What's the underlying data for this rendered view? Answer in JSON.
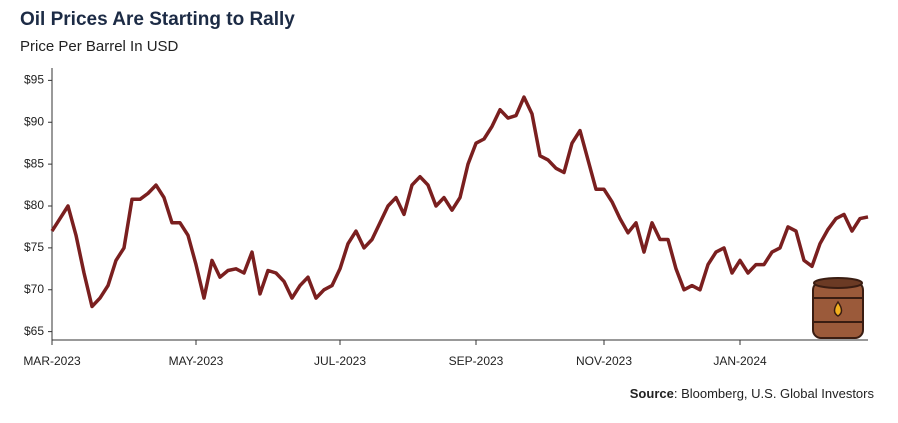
{
  "chart_data": {
    "type": "line",
    "title": "Oil Prices Are Starting to Rally",
    "subtitle": "Price Per Barrel In USD",
    "source": {
      "label": "Source",
      "text": ": Bloomberg, U.S. Global Investors"
    },
    "categories": [
      "MAR-2023",
      null,
      null,
      null,
      null,
      null,
      null,
      null,
      null,
      null,
      null,
      null,
      null,
      null,
      null,
      null,
      null,
      null,
      "MAY-2023",
      null,
      null,
      null,
      null,
      null,
      null,
      null,
      null,
      null,
      null,
      null,
      null,
      null,
      null,
      null,
      null,
      null,
      "JUL-2023",
      null,
      null,
      null,
      null,
      null,
      null,
      null,
      null,
      null,
      null,
      null,
      null,
      null,
      null,
      null,
      null,
      "SEP-2023",
      null,
      null,
      null,
      null,
      null,
      null,
      null,
      null,
      null,
      null,
      null,
      null,
      null,
      null,
      null,
      "NOV-2023",
      null,
      null,
      null,
      null,
      null,
      null,
      null,
      null,
      null,
      null,
      null,
      null,
      null,
      null,
      null,
      null,
      "JAN-2024",
      null,
      null,
      null,
      null,
      null,
      null,
      null,
      null,
      null,
      null,
      null,
      null,
      null,
      null,
      null,
      null
    ],
    "series": [
      {
        "name": "Oil price",
        "color": "#7a1f1f",
        "values": [
          77,
          78.5,
          80,
          76.5,
          72,
          68,
          69,
          70.5,
          73.5,
          75,
          80.8,
          80.8,
          81.5,
          82.5,
          81,
          78,
          78,
          76.5,
          73,
          69,
          73.5,
          71.5,
          72.3,
          72.5,
          72,
          74.5,
          69.5,
          72.3,
          72,
          71,
          69,
          70.5,
          71.5,
          69,
          70,
          70.5,
          72.5,
          75.5,
          77,
          75,
          76,
          78,
          80,
          81,
          79,
          82.5,
          83.5,
          82.5,
          80,
          81,
          79.5,
          81,
          85,
          87.5,
          88,
          89.5,
          91.5,
          90.5,
          90.8,
          93,
          91,
          86,
          85.5,
          84.5,
          84,
          87.5,
          89,
          85.5,
          82,
          82,
          80.5,
          78.5,
          76.8,
          78,
          74.5,
          78,
          76,
          76,
          72.5,
          70,
          70.5,
          70,
          73,
          74.5,
          75,
          72,
          73.5,
          72,
          73,
          73,
          74.5,
          75,
          77.5,
          77,
          73.5,
          72.8,
          75.5,
          77.2,
          78.5,
          79,
          77,
          78.5,
          78.7
        ]
      }
    ],
    "ylim": [
      64,
      96
    ],
    "yticks": [
      {
        "value": 65,
        "label": "$65"
      },
      {
        "value": 70,
        "label": "$70"
      },
      {
        "value": 75,
        "label": "$75"
      },
      {
        "value": 80,
        "label": "$80"
      },
      {
        "value": 85,
        "label": "$85"
      },
      {
        "value": 90,
        "label": "$90"
      },
      {
        "value": 95,
        "label": "$95"
      }
    ],
    "grid": false
  }
}
